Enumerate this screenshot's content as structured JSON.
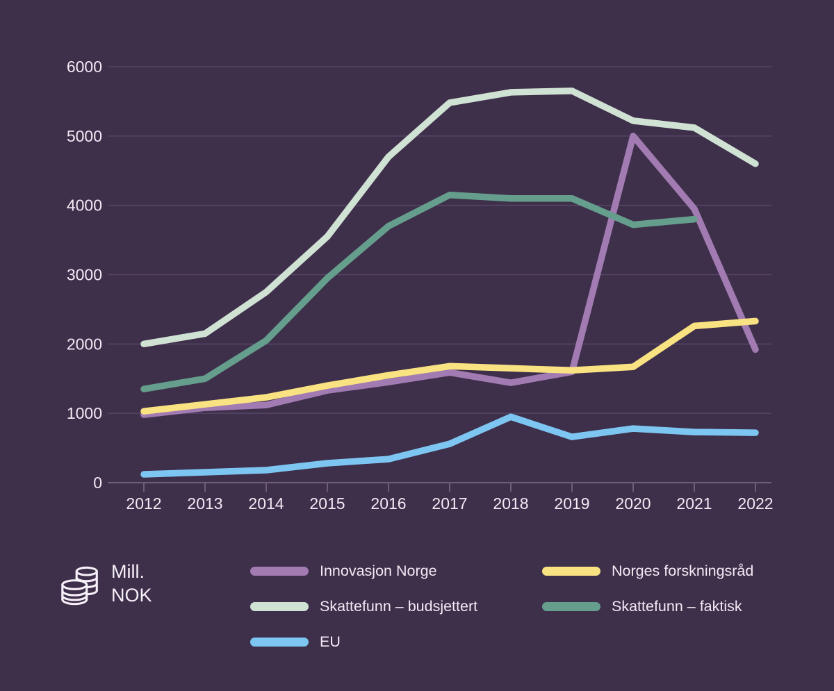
{
  "chart_data": {
    "type": "line",
    "title": "",
    "unit_label": {
      "line1": "Mill.",
      "line2": "NOK"
    },
    "x": [
      2012,
      2013,
      2014,
      2015,
      2016,
      2017,
      2018,
      2019,
      2020,
      2021,
      2022
    ],
    "xlabel": "",
    "ylabel": "Mill. NOK",
    "ylim": [
      0,
      6000
    ],
    "y_ticks": [
      0,
      1000,
      2000,
      3000,
      4000,
      5000,
      6000
    ],
    "y_tick_labels": [
      "0",
      "1000",
      "2000",
      "3000",
      "4000",
      "5000",
      "6000"
    ],
    "grid": "horizontal",
    "legend_position": "bottom",
    "series": [
      {
        "name": "Innovasjon Norge",
        "color": "#a17bb2",
        "values": [
          980,
          1080,
          1120,
          1330,
          1450,
          1590,
          1440,
          1600,
          5000,
          3950,
          1920
        ]
      },
      {
        "name": "Skattefunn – budsjettert",
        "color": "#d0e2d4",
        "values": [
          2000,
          2150,
          2750,
          3550,
          4700,
          5480,
          5630,
          5650,
          5220,
          5120,
          4600
        ]
      },
      {
        "name": "Skattefunn – faktisk",
        "color": "#659e8c",
        "values": [
          1350,
          1500,
          2050,
          2950,
          3700,
          4150,
          4100,
          4100,
          3720,
          3800,
          null
        ]
      },
      {
        "name": "Norges forskningsråd",
        "color": "#f9e282",
        "values": [
          1030,
          1130,
          1230,
          1400,
          1550,
          1680,
          1650,
          1620,
          1670,
          2260,
          2330
        ]
      },
      {
        "name": "EU",
        "color": "#7ec6f2",
        "values": [
          120,
          150,
          180,
          280,
          340,
          560,
          950,
          660,
          780,
          730,
          720
        ]
      }
    ]
  },
  "legend": {
    "columns": [
      {
        "items": [
          {
            "label": "Innovasjon Norge",
            "series": 0
          },
          {
            "label": "Skattefunn – budsjettert",
            "series": 1
          },
          {
            "label": "EU",
            "series": 4
          }
        ]
      },
      {
        "items": [
          {
            "label": "Norges forskningsråd",
            "series": 3
          },
          {
            "label": "Skattefunn – faktisk",
            "series": 2
          }
        ]
      }
    ]
  },
  "colors": {
    "background": "#3e2f4a",
    "grid": "#564766",
    "axis": "#6e5e7e",
    "text": "#f2eaf5"
  }
}
